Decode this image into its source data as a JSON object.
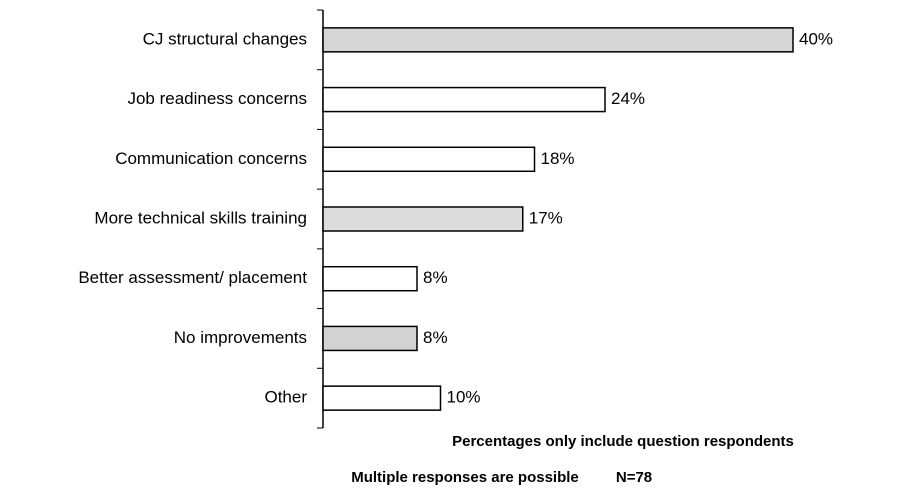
{
  "chart_data": {
    "type": "bar",
    "orientation": "horizontal",
    "categories": [
      "CJ structural changes",
      "Job readiness concerns",
      "Communication concerns",
      "More technical skills training",
      "Better assessment/ placement",
      "No improvements",
      "Other"
    ],
    "values": [
      40,
      24,
      18,
      17,
      8,
      8,
      10
    ],
    "value_labels": [
      "40%",
      "24%",
      "18%",
      "17%",
      "8%",
      "8%",
      "10%"
    ],
    "colors": [
      "#d6d6d6",
      "#ffffff",
      "#ffffff",
      "#dcdcdc",
      "#ffffff",
      "#d2d2d2",
      "#ffffff"
    ],
    "xlim": [
      0,
      48
    ],
    "annotations": [
      "Percentages only include question respondents",
      "Multiple responses are possible",
      "N=78"
    ]
  }
}
